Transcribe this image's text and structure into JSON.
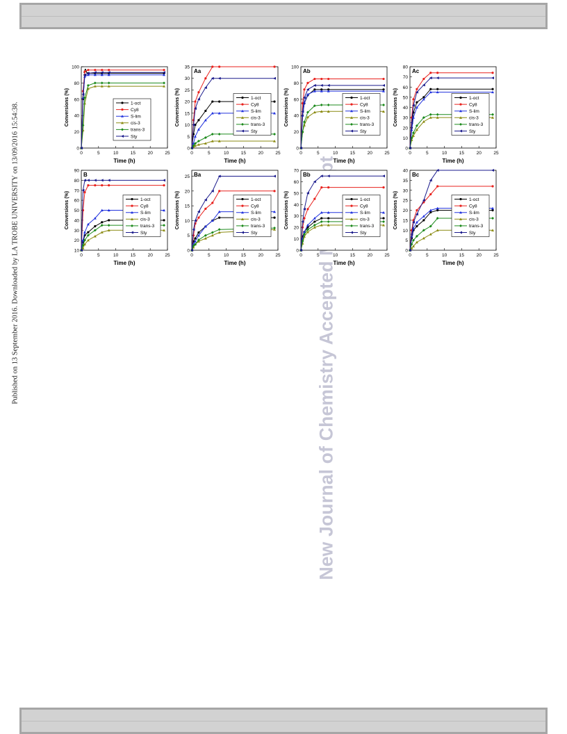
{
  "side_text": "Published on 13 September 2016. Downloaded by LA TROBE UNIVERSITY on 13/09/2016 15:54:38.",
  "watermark": "New Journal of Chemistry Accepted Manuscript",
  "legend_entries": [
    "1-oct",
    "Cy8",
    "S-lim",
    "cis-3",
    "trans-3",
    "Sty"
  ],
  "series_colors": {
    "1-oct": "#000000",
    "Cy8": "#e8211d",
    "S-lim": "#2233dd",
    "cis-3": "#8a8a10",
    "trans-3": "#1c8a1c",
    "Sty": "#1a1a8c"
  },
  "chart_data": [
    {
      "type": "line",
      "title": "A",
      "xlabel": "Time (h)",
      "ylabel": "Conversions (%)",
      "x": [
        0,
        0.5,
        1,
        2,
        4,
        6,
        8,
        24
      ],
      "xlim": [
        0,
        25
      ],
      "ylim": [
        0,
        100
      ],
      "xticks": [
        0,
        5,
        10,
        15,
        20,
        25
      ],
      "yticks": [
        0,
        20,
        40,
        60,
        80,
        100
      ],
      "legend": "center",
      "series": [
        {
          "name": "1-oct",
          "values": [
            0,
            60,
            90,
            92,
            92,
            92,
            92,
            92
          ]
        },
        {
          "name": "Cy8",
          "values": [
            0,
            70,
            94,
            96,
            96,
            96,
            96,
            96
          ]
        },
        {
          "name": "S-lim",
          "values": [
            0,
            62,
            88,
            90,
            90,
            90,
            90,
            90
          ]
        },
        {
          "name": "cis-3",
          "values": [
            0,
            22,
            55,
            73,
            76,
            76,
            76,
            76
          ]
        },
        {
          "name": "trans-3",
          "values": [
            0,
            28,
            62,
            77,
            80,
            80,
            80,
            80
          ]
        },
        {
          "name": "Sty",
          "values": [
            0,
            66,
            90,
            92,
            93,
            93,
            93,
            93
          ]
        }
      ]
    },
    {
      "type": "line",
      "title": "Aa",
      "xlabel": "Time (h)",
      "ylabel": "Conversions (%)",
      "x": [
        0,
        0.5,
        1,
        2,
        4,
        6,
        8,
        24
      ],
      "xlim": [
        0,
        25
      ],
      "ylim": [
        0,
        35
      ],
      "xticks": [
        0,
        5,
        10,
        15,
        20,
        25
      ],
      "yticks": [
        0,
        5,
        10,
        15,
        20,
        25,
        30,
        35
      ],
      "legend": "right",
      "series": [
        {
          "name": "1-oct",
          "values": [
            0,
            6,
            10,
            12,
            16,
            20,
            20,
            20
          ]
        },
        {
          "name": "Cy8",
          "values": [
            0,
            12,
            20,
            24,
            30,
            35,
            35,
            35
          ]
        },
        {
          "name": "S-lim",
          "values": [
            0,
            2,
            5,
            8,
            12,
            15,
            15,
            15
          ]
        },
        {
          "name": "cis-3",
          "values": [
            0,
            0.5,
            1,
            1.5,
            2,
            3,
            3,
            3
          ]
        },
        {
          "name": "trans-3",
          "values": [
            0,
            1,
            2,
            3,
            4.5,
            6,
            6,
            6
          ]
        },
        {
          "name": "Sty",
          "values": [
            0,
            10,
            17,
            21,
            26,
            30,
            30,
            30
          ]
        }
      ]
    },
    {
      "type": "line",
      "title": "Ab",
      "xlabel": "Time (h)",
      "ylabel": "Conversions (%)",
      "x": [
        0,
        0.5,
        1,
        2,
        4,
        6,
        8,
        24
      ],
      "xlim": [
        0,
        25
      ],
      "ylim": [
        0,
        100
      ],
      "xticks": [
        0,
        5,
        10,
        15,
        20,
        25
      ],
      "yticks": [
        0,
        20,
        40,
        60,
        80,
        100
      ],
      "legend": "right",
      "series": [
        {
          "name": "1-oct",
          "values": [
            0,
            40,
            55,
            65,
            72,
            72,
            72,
            72
          ]
        },
        {
          "name": "Cy8",
          "values": [
            0,
            55,
            72,
            80,
            85,
            85,
            85,
            85
          ]
        },
        {
          "name": "S-lim",
          "values": [
            0,
            40,
            56,
            66,
            70,
            70,
            70,
            70
          ]
        },
        {
          "name": "cis-3",
          "values": [
            0,
            20,
            28,
            38,
            44,
            45,
            45,
            45
          ]
        },
        {
          "name": "trans-3",
          "values": [
            0,
            20,
            32,
            44,
            52,
            53,
            53,
            53
          ]
        },
        {
          "name": "Sty",
          "values": [
            0,
            45,
            62,
            72,
            77,
            77,
            77,
            77
          ]
        }
      ]
    },
    {
      "type": "line",
      "title": "Ac",
      "xlabel": "Time (h)",
      "ylabel": "Conversions (%)",
      "x": [
        0,
        0.5,
        1,
        2,
        4,
        6,
        8,
        24
      ],
      "xlim": [
        0,
        25
      ],
      "ylim": [
        0,
        80
      ],
      "xticks": [
        0,
        5,
        10,
        15,
        20,
        25
      ],
      "yticks": [
        0,
        10,
        20,
        30,
        40,
        50,
        60,
        70,
        80
      ],
      "legend": "right",
      "series": [
        {
          "name": "1-oct",
          "values": [
            0,
            20,
            35,
            45,
            50,
            58,
            58,
            58
          ]
        },
        {
          "name": "Cy8",
          "values": [
            0,
            30,
            48,
            58,
            68,
            74,
            74,
            74
          ]
        },
        {
          "name": "S-lim",
          "values": [
            0,
            18,
            30,
            40,
            48,
            55,
            55,
            55
          ]
        },
        {
          "name": "cis-3",
          "values": [
            0,
            8,
            12,
            18,
            26,
            30,
            30,
            30
          ]
        },
        {
          "name": "trans-3",
          "values": [
            0,
            10,
            15,
            22,
            30,
            33,
            33,
            33
          ]
        },
        {
          "name": "Sty",
          "values": [
            0,
            25,
            42,
            55,
            62,
            69,
            69,
            69
          ]
        }
      ]
    },
    {
      "type": "line",
      "title": "B",
      "xlabel": "Time (h)",
      "ylabel": "Conversions (%)",
      "x": [
        0,
        0.5,
        1,
        2,
        4,
        6,
        8,
        24
      ],
      "xlim": [
        0,
        25
      ],
      "ylim": [
        10,
        90
      ],
      "xticks": [
        0,
        5,
        10,
        15,
        20,
        25
      ],
      "yticks": [
        10,
        20,
        30,
        40,
        50,
        60,
        70,
        80,
        90
      ],
      "legend": "right",
      "series": [
        {
          "name": "1-oct",
          "values": [
            10,
            18,
            25,
            28,
            34,
            38,
            40,
            40
          ]
        },
        {
          "name": "Cy8",
          "values": [
            10,
            50,
            68,
            75,
            75,
            75,
            75,
            75
          ]
        },
        {
          "name": "S-lim",
          "values": [
            10,
            20,
            28,
            36,
            42,
            50,
            50,
            50
          ]
        },
        {
          "name": "cis-3",
          "values": [
            4,
            12,
            16,
            20,
            24,
            28,
            30,
            30
          ]
        },
        {
          "name": "trans-3",
          "values": [
            10,
            15,
            20,
            25,
            30,
            35,
            35,
            35
          ]
        },
        {
          "name": "Sty",
          "values": [
            10,
            70,
            80,
            80,
            80,
            80,
            80,
            80
          ]
        }
      ]
    },
    {
      "type": "line",
      "title": "Ba",
      "xlabel": "Time (h)",
      "ylabel": "Conversions (%)",
      "x": [
        0,
        0.5,
        1,
        2,
        4,
        6,
        8,
        24
      ],
      "xlim": [
        0,
        25
      ],
      "ylim": [
        0,
        27
      ],
      "xticks": [
        0,
        5,
        10,
        15,
        20,
        25
      ],
      "yticks": [
        0,
        5,
        10,
        15,
        20,
        25
      ],
      "legend": "right",
      "series": [
        {
          "name": "1-oct",
          "values": [
            0,
            3,
            4,
            6,
            8,
            10,
            11,
            11
          ]
        },
        {
          "name": "Cy8",
          "values": [
            0,
            5,
            9,
            11,
            14,
            16,
            20,
            20
          ]
        },
        {
          "name": "S-lim",
          "values": [
            0,
            2,
            3,
            5,
            8,
            10,
            13,
            13
          ]
        },
        {
          "name": "cis-3",
          "values": [
            0,
            1,
            2,
            3,
            4,
            5,
            6,
            7
          ]
        },
        {
          "name": "trans-3",
          "values": [
            0,
            1.5,
            2,
            3.5,
            5,
            6,
            7,
            7.5
          ]
        },
        {
          "name": "Sty",
          "values": [
            0,
            7,
            10,
            13,
            17,
            20,
            25,
            25
          ]
        }
      ]
    },
    {
      "type": "line",
      "title": "Bb",
      "xlabel": "Time (h)",
      "ylabel": "Conversions (%)",
      "x": [
        0,
        0.5,
        1,
        2,
        4,
        6,
        8,
        24
      ],
      "xlim": [
        0,
        25
      ],
      "ylim": [
        0,
        70
      ],
      "xticks": [
        0,
        5,
        10,
        15,
        20,
        25
      ],
      "yticks": [
        0,
        10,
        20,
        30,
        40,
        50,
        60,
        70
      ],
      "legend": "right",
      "series": [
        {
          "name": "1-oct",
          "values": [
            0,
            12,
            16,
            20,
            25,
            28,
            28,
            28
          ]
        },
        {
          "name": "Cy8",
          "values": [
            0,
            20,
            28,
            36,
            45,
            55,
            55,
            55
          ]
        },
        {
          "name": "S-lim",
          "values": [
            0,
            10,
            16,
            22,
            28,
            33,
            33,
            33
          ]
        },
        {
          "name": "cis-3",
          "values": [
            0,
            6,
            12,
            16,
            20,
            22,
            22,
            22
          ]
        },
        {
          "name": "trans-3",
          "values": [
            0,
            8,
            14,
            18,
            22,
            25,
            25,
            25
          ]
        },
        {
          "name": "Sty",
          "values": [
            0,
            25,
            36,
            50,
            60,
            65,
            65,
            65
          ]
        }
      ]
    },
    {
      "type": "line",
      "title": "Bc",
      "xlabel": "Time (h)",
      "ylabel": "Conversions (%)",
      "x": [
        0,
        0.5,
        1,
        2,
        4,
        6,
        8,
        24
      ],
      "xlim": [
        0,
        25
      ],
      "ylim": [
        0,
        40
      ],
      "xticks": [
        0,
        5,
        10,
        15,
        20,
        25
      ],
      "yticks": [
        0,
        5,
        10,
        15,
        20,
        25,
        30,
        35,
        40
      ],
      "legend": "right",
      "series": [
        {
          "name": "1-oct",
          "values": [
            0,
            6,
            10,
            12,
            15,
            19,
            20,
            20
          ]
        },
        {
          "name": "Cy8",
          "values": [
            0,
            10,
            15,
            20,
            24,
            28,
            32,
            32
          ]
        },
        {
          "name": "S-lim",
          "values": [
            0,
            7,
            11,
            14,
            17,
            20,
            21,
            21
          ]
        },
        {
          "name": "cis-3",
          "values": [
            0,
            1,
            2,
            4,
            6,
            8,
            10,
            10
          ]
        },
        {
          "name": "trans-3",
          "values": [
            0,
            3,
            5,
            7,
            10,
            12,
            16,
            16
          ]
        },
        {
          "name": "Sty",
          "values": [
            0,
            8,
            14,
            18,
            25,
            35,
            40,
            40
          ]
        }
      ]
    }
  ]
}
